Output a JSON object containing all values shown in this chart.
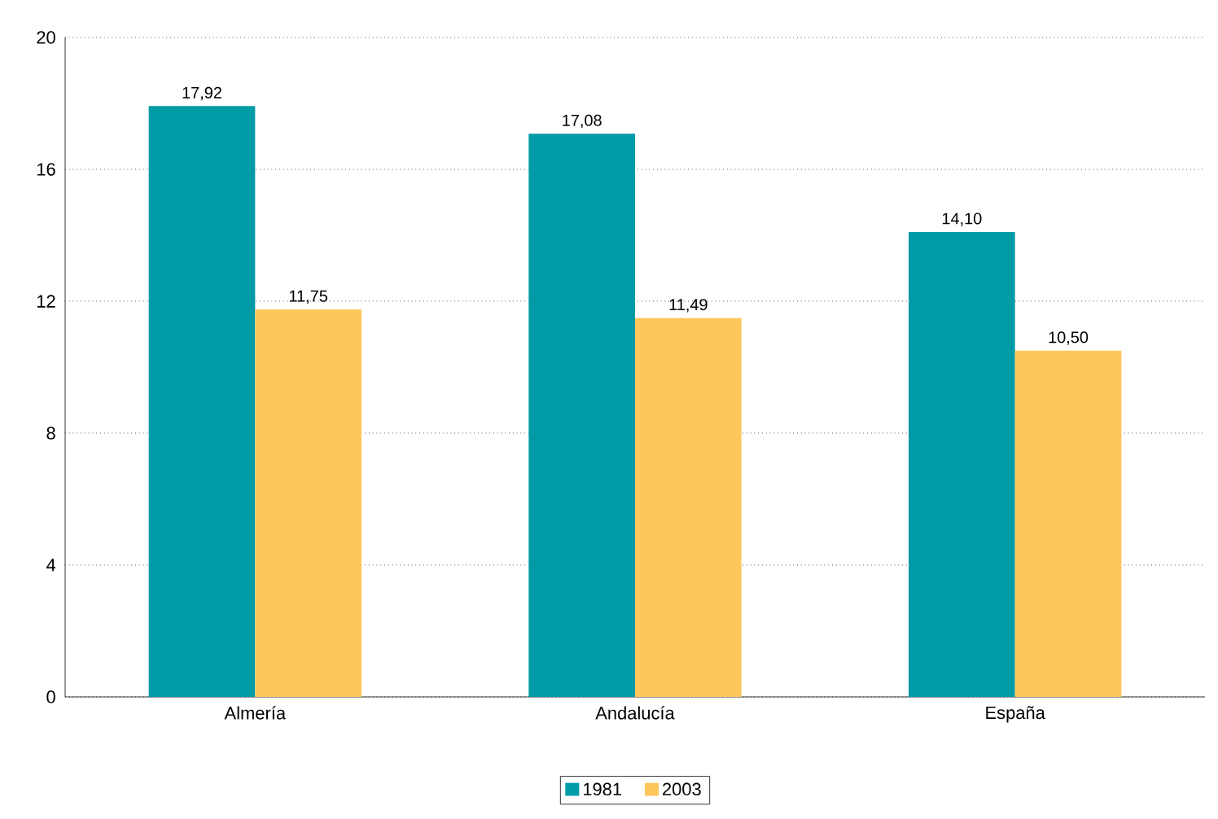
{
  "chart_data": {
    "type": "bar",
    "categories": [
      "Almería",
      "Andalucía",
      "España"
    ],
    "series": [
      {
        "name": "1981",
        "color": "#009ba6",
        "values": [
          17.92,
          17.08,
          14.1
        ],
        "value_labels": [
          "17,92",
          "17,08",
          "14,10"
        ]
      },
      {
        "name": "2003",
        "color": "#fdc75b",
        "values": [
          11.75,
          11.49,
          10.5
        ],
        "value_labels": [
          "11,75",
          "11,49",
          "10,50"
        ]
      }
    ],
    "ylim": [
      0,
      20
    ],
    "yticks": [
      0,
      4,
      8,
      12,
      16,
      20
    ],
    "grid": "y",
    "legend": "bottom"
  }
}
